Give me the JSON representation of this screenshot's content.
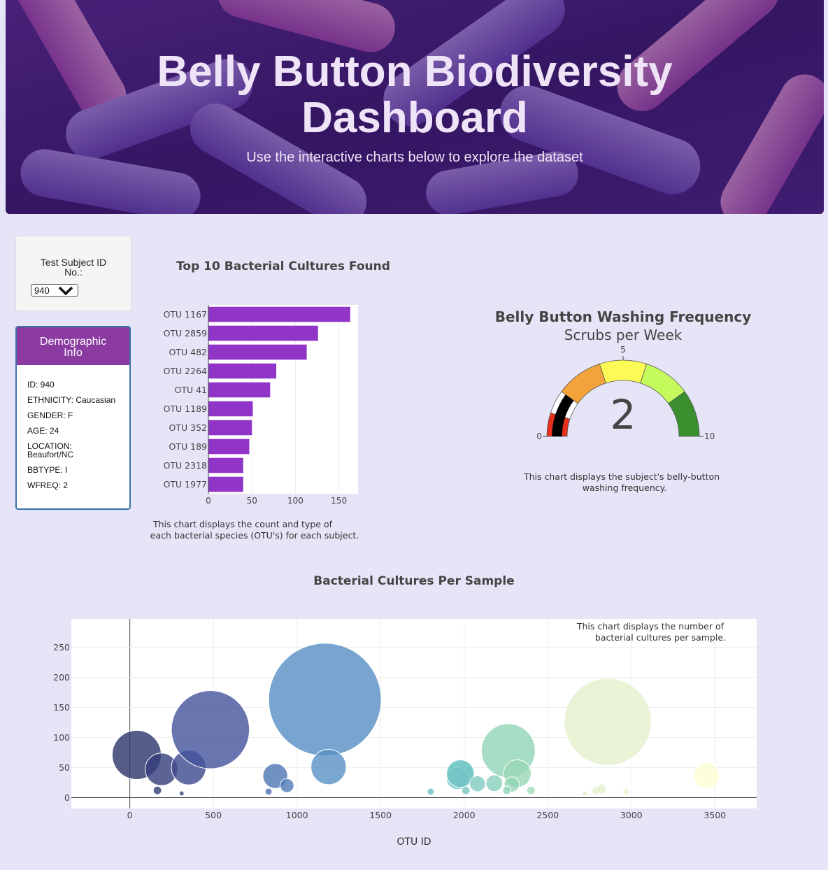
{
  "header": {
    "title_line1": "Belly Button Biodiversity",
    "title_line2": "Dashboard",
    "subtitle": "Use the interactive charts below to explore the dataset"
  },
  "selector": {
    "label_line1": "Test Subject ID",
    "label_line2": "No.:",
    "value": "940"
  },
  "demographics": {
    "title_line1": "Demographic",
    "title_line2": "Info",
    "rows": [
      "ID: 940",
      "ETHNICITY: Caucasian",
      "GENDER: F",
      "AGE: 24",
      "LOCATION:",
      "Beaufort/NC",
      "BBTYPE: I",
      "WFREQ: 2"
    ]
  },
  "colors": {
    "bar": "#9035c8",
    "demo_header": "#8a3aa1",
    "background": "#e6e5f7"
  },
  "chart_data": [
    {
      "type": "bar",
      "orientation": "horizontal",
      "title": "Top 10 Bacterial Cultures Found",
      "categories": [
        "OTU 1167",
        "OTU 2859",
        "OTU 482",
        "OTU 2264",
        "OTU 41",
        "OTU 1189",
        "OTU 352",
        "OTU 189",
        "OTU 2318",
        "OTU 1977"
      ],
      "values": [
        163,
        126,
        113,
        78,
        71,
        51,
        50,
        47,
        40,
        40
      ],
      "xticks": [
        "0",
        "50",
        "100",
        "150"
      ],
      "xlim": [
        0,
        172
      ],
      "caption_line1": "This chart displays the count and type of",
      "caption_line2": "each bacterial species (OTU's) for each subject."
    },
    {
      "type": "gauge",
      "title": "Belly Button Washing Frequency",
      "subtitle": "Scrubs per Week",
      "value": 2,
      "display_value": "2",
      "range": [
        0,
        10
      ],
      "tick_labels": [
        "0",
        "5",
        "10"
      ],
      "steps": [
        {
          "range": [
            0,
            1
          ],
          "color": "#e8301d"
        },
        {
          "range": [
            1,
            2
          ],
          "color": "#ffffff"
        },
        {
          "range": [
            2,
            4
          ],
          "color": "#f2a33b"
        },
        {
          "range": [
            4,
            6
          ],
          "color": "#fcfb55"
        },
        {
          "range": [
            6,
            8
          ],
          "color": "#c5fa5c"
        },
        {
          "range": [
            8,
            10
          ],
          "color": "#3c8f2f"
        }
      ],
      "bar_color": "#000000",
      "caption_line1": "This chart displays the subject's belly-button",
      "caption_line2": "washing frequency."
    },
    {
      "type": "scatter",
      "subtype": "bubble",
      "title": "Bacterial Cultures Per Sample",
      "xlabel": "OTU ID",
      "xticks": [
        "0",
        "500",
        "1000",
        "1500",
        "2000",
        "2500",
        "3000",
        "3500"
      ],
      "yticks": [
        "0",
        "50",
        "100",
        "150",
        "200",
        "250"
      ],
      "xlim": [
        -350,
        3750
      ],
      "ylim": [
        -18,
        297
      ],
      "annotation_line1": "This chart displays the number of",
      "annotation_line2": "bacterial cultures per sample.",
      "points": [
        {
          "x": 41,
          "y": 71
        },
        {
          "x": 189,
          "y": 47
        },
        {
          "x": 352,
          "y": 50
        },
        {
          "x": 482,
          "y": 113
        },
        {
          "x": 1167,
          "y": 163
        },
        {
          "x": 1189,
          "y": 51
        },
        {
          "x": 870,
          "y": 36
        },
        {
          "x": 940,
          "y": 20
        },
        {
          "x": 165,
          "y": 12
        },
        {
          "x": 310,
          "y": 7
        },
        {
          "x": 830,
          "y": 10
        },
        {
          "x": 1980,
          "y": 39
        },
        {
          "x": 1960,
          "y": 32
        },
        {
          "x": 1977,
          "y": 40
        },
        {
          "x": 2080,
          "y": 23
        },
        {
          "x": 2010,
          "y": 12
        },
        {
          "x": 2180,
          "y": 24
        },
        {
          "x": 2264,
          "y": 78
        },
        {
          "x": 2318,
          "y": 40
        },
        {
          "x": 2285,
          "y": 22
        },
        {
          "x": 2255,
          "y": 12
        },
        {
          "x": 1800,
          "y": 10
        },
        {
          "x": 2400,
          "y": 12
        },
        {
          "x": 2859,
          "y": 126
        },
        {
          "x": 2790,
          "y": 12
        },
        {
          "x": 2820,
          "y": 14
        },
        {
          "x": 2720,
          "y": 7
        },
        {
          "x": 2970,
          "y": 10
        },
        {
          "x": 3450,
          "y": 37
        }
      ],
      "sizes": [
        71,
        47,
        50,
        113,
        163,
        51,
        36,
        20,
        12,
        7,
        10,
        39,
        32,
        40,
        23,
        12,
        24,
        78,
        40,
        22,
        12,
        10,
        12,
        126,
        12,
        14,
        7,
        10,
        37
      ]
    }
  ]
}
